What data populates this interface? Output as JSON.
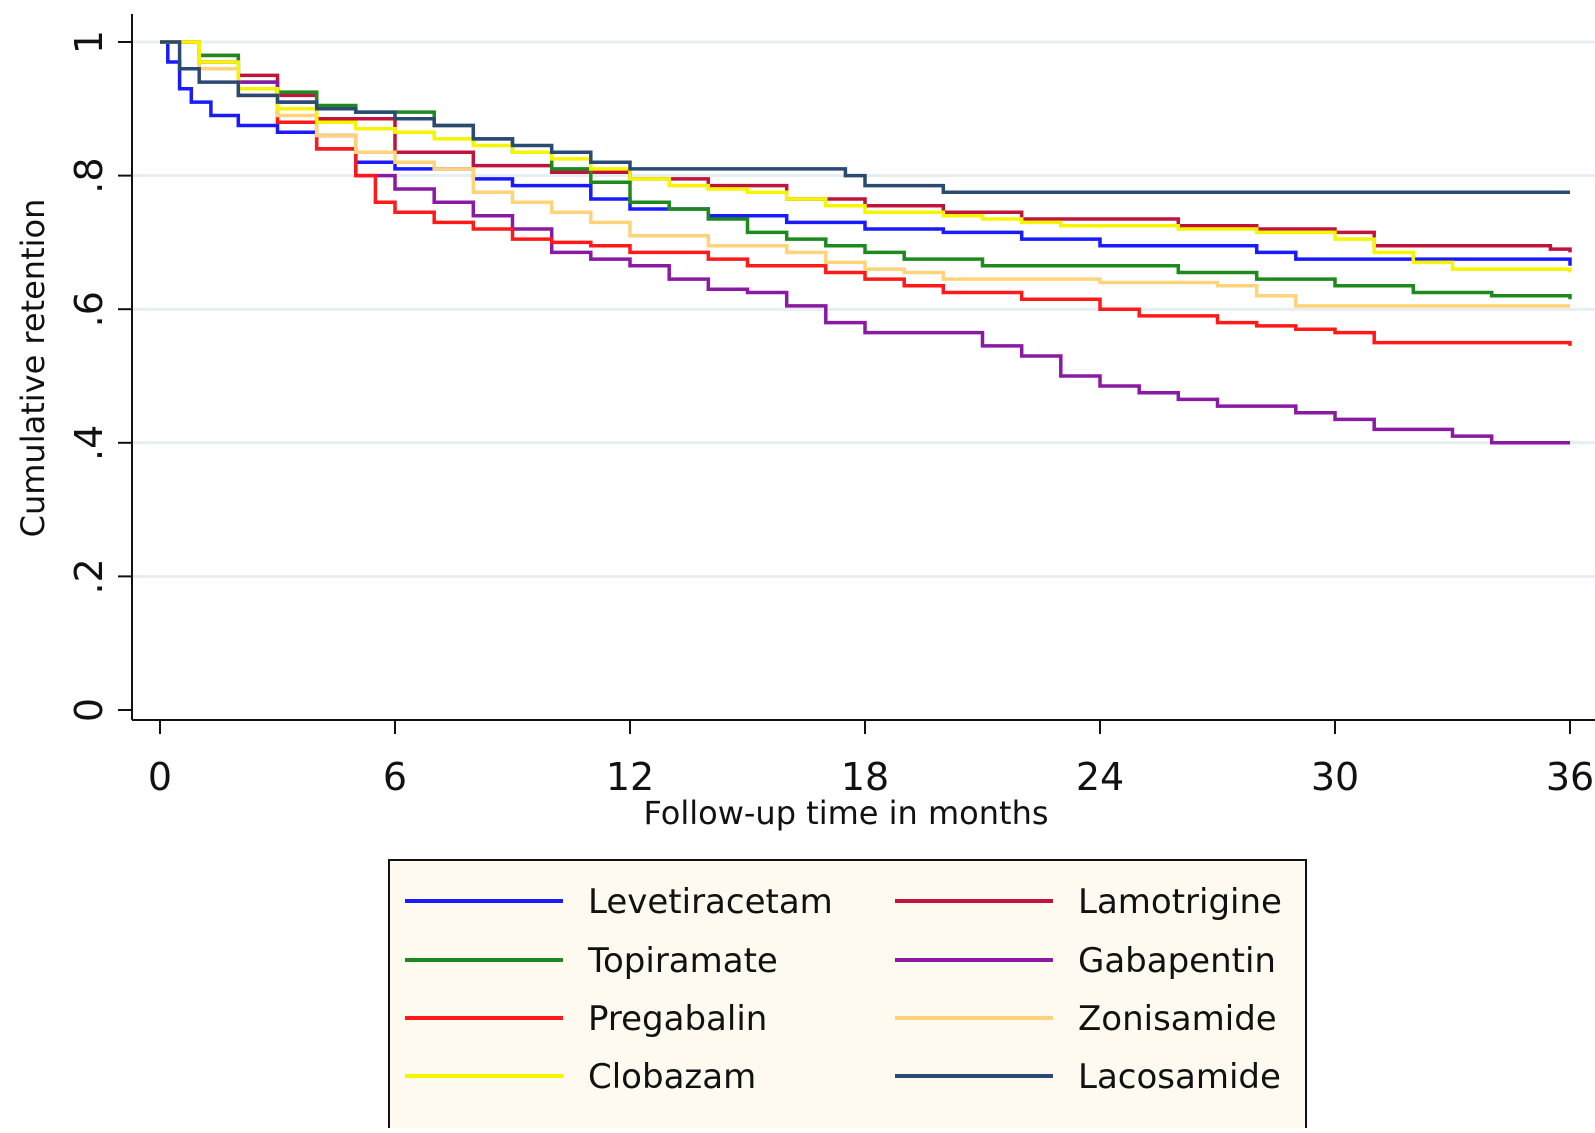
{
  "chart_data": {
    "type": "line",
    "step": true,
    "xlabel": "Follow-up time in months",
    "ylabel": "Cumulative retention",
    "xlim": [
      0,
      36
    ],
    "ylim": [
      0,
      1
    ],
    "xticks": [
      0,
      6,
      12,
      18,
      24,
      30,
      36
    ],
    "yticks": [
      0,
      0.2,
      0.4,
      0.6,
      0.8,
      1
    ],
    "xtick_labels": [
      "0",
      "6",
      "12",
      "18",
      "24",
      "30",
      "36"
    ],
    "ytick_labels": [
      "0",
      ".2",
      ".4",
      ".6",
      ".8",
      "1"
    ],
    "grid": "horizontal",
    "legend_position": "bottom",
    "series": [
      {
        "name": "Levetiracetam",
        "color": "#1a1aff",
        "points": [
          [
            0,
            1
          ],
          [
            0.2,
            0.97
          ],
          [
            0.5,
            0.93
          ],
          [
            0.8,
            0.91
          ],
          [
            1.3,
            0.89
          ],
          [
            2,
            0.875
          ],
          [
            3,
            0.865
          ],
          [
            4,
            0.84
          ],
          [
            5,
            0.82
          ],
          [
            6,
            0.81
          ],
          [
            8,
            0.795
          ],
          [
            9,
            0.785
          ],
          [
            11,
            0.765
          ],
          [
            12,
            0.75
          ],
          [
            14,
            0.74
          ],
          [
            16,
            0.73
          ],
          [
            18,
            0.72
          ],
          [
            20,
            0.715
          ],
          [
            22,
            0.705
          ],
          [
            24,
            0.695
          ],
          [
            28,
            0.685
          ],
          [
            29,
            0.675
          ],
          [
            36,
            0.665
          ]
        ]
      },
      {
        "name": "Lamotrigine",
        "color": "#c0143c",
        "points": [
          [
            0,
            1
          ],
          [
            1,
            0.98
          ],
          [
            2,
            0.95
          ],
          [
            3,
            0.92
          ],
          [
            4,
            0.885
          ],
          [
            6,
            0.835
          ],
          [
            8,
            0.815
          ],
          [
            10,
            0.805
          ],
          [
            12,
            0.795
          ],
          [
            14,
            0.785
          ],
          [
            16,
            0.765
          ],
          [
            18,
            0.755
          ],
          [
            20,
            0.745
          ],
          [
            22,
            0.735
          ],
          [
            26,
            0.725
          ],
          [
            28,
            0.72
          ],
          [
            30,
            0.715
          ],
          [
            31,
            0.695
          ],
          [
            35.5,
            0.69
          ],
          [
            36,
            0.685
          ]
        ]
      },
      {
        "name": "Topiramate",
        "color": "#1e8a1e",
        "points": [
          [
            0,
            1
          ],
          [
            1,
            0.98
          ],
          [
            2,
            0.94
          ],
          [
            3,
            0.925
          ],
          [
            4,
            0.905
          ],
          [
            5,
            0.895
          ],
          [
            6,
            0.895
          ],
          [
            7,
            0.875
          ],
          [
            8,
            0.855
          ],
          [
            9,
            0.835
          ],
          [
            10,
            0.81
          ],
          [
            11,
            0.79
          ],
          [
            12,
            0.76
          ],
          [
            13,
            0.75
          ],
          [
            14,
            0.735
          ],
          [
            15,
            0.715
          ],
          [
            16,
            0.705
          ],
          [
            17,
            0.695
          ],
          [
            18,
            0.685
          ],
          [
            19,
            0.675
          ],
          [
            21,
            0.665
          ],
          [
            26,
            0.655
          ],
          [
            28,
            0.645
          ],
          [
            30,
            0.635
          ],
          [
            32,
            0.625
          ],
          [
            34,
            0.62
          ],
          [
            36,
            0.615
          ]
        ]
      },
      {
        "name": "Gabapentin",
        "color": "#8a1aa3",
        "points": [
          [
            0,
            1
          ],
          [
            1,
            0.97
          ],
          [
            2,
            0.94
          ],
          [
            3,
            0.91
          ],
          [
            4,
            0.86
          ],
          [
            5,
            0.8
          ],
          [
            6,
            0.78
          ],
          [
            7,
            0.76
          ],
          [
            8,
            0.74
          ],
          [
            9,
            0.72
          ],
          [
            10,
            0.685
          ],
          [
            11,
            0.675
          ],
          [
            12,
            0.665
          ],
          [
            13,
            0.645
          ],
          [
            14,
            0.63
          ],
          [
            15,
            0.625
          ],
          [
            16,
            0.605
          ],
          [
            17,
            0.58
          ],
          [
            18,
            0.565
          ],
          [
            19,
            0.565
          ],
          [
            20,
            0.565
          ],
          [
            21,
            0.545
          ],
          [
            22,
            0.53
          ],
          [
            23,
            0.5
          ],
          [
            24,
            0.485
          ],
          [
            25,
            0.475
          ],
          [
            26,
            0.465
          ],
          [
            27,
            0.455
          ],
          [
            29,
            0.445
          ],
          [
            30,
            0.435
          ],
          [
            31,
            0.42
          ],
          [
            33,
            0.41
          ],
          [
            34,
            0.4
          ],
          [
            36,
            0.4
          ]
        ]
      },
      {
        "name": "Pregabalin",
        "color": "#ff1a1a",
        "points": [
          [
            0,
            1
          ],
          [
            1,
            0.96
          ],
          [
            2,
            0.92
          ],
          [
            3,
            0.88
          ],
          [
            4,
            0.84
          ],
          [
            5,
            0.8
          ],
          [
            5.5,
            0.76
          ],
          [
            6,
            0.745
          ],
          [
            7,
            0.73
          ],
          [
            8,
            0.72
          ],
          [
            9,
            0.705
          ],
          [
            10,
            0.7
          ],
          [
            11,
            0.695
          ],
          [
            12,
            0.685
          ],
          [
            14,
            0.675
          ],
          [
            15,
            0.665
          ],
          [
            17,
            0.655
          ],
          [
            18,
            0.645
          ],
          [
            19,
            0.635
          ],
          [
            20,
            0.625
          ],
          [
            22,
            0.615
          ],
          [
            24,
            0.6
          ],
          [
            25,
            0.59
          ],
          [
            27,
            0.58
          ],
          [
            28,
            0.575
          ],
          [
            29,
            0.57
          ],
          [
            30,
            0.565
          ],
          [
            31,
            0.55
          ],
          [
            36,
            0.545
          ]
        ]
      },
      {
        "name": "Zonisamide",
        "color": "#ffd37a",
        "points": [
          [
            0,
            1
          ],
          [
            1,
            0.96
          ],
          [
            2,
            0.92
          ],
          [
            3,
            0.89
          ],
          [
            4,
            0.86
          ],
          [
            5,
            0.835
          ],
          [
            6,
            0.82
          ],
          [
            7,
            0.81
          ],
          [
            8,
            0.775
          ],
          [
            9,
            0.76
          ],
          [
            10,
            0.745
          ],
          [
            11,
            0.73
          ],
          [
            12,
            0.71
          ],
          [
            14,
            0.695
          ],
          [
            16,
            0.685
          ],
          [
            17,
            0.67
          ],
          [
            18,
            0.66
          ],
          [
            19,
            0.655
          ],
          [
            20,
            0.645
          ],
          [
            24,
            0.64
          ],
          [
            27,
            0.635
          ],
          [
            28,
            0.62
          ],
          [
            29,
            0.605
          ],
          [
            36,
            0.605
          ]
        ]
      },
      {
        "name": "Clobazam",
        "color": "#f5f500",
        "points": [
          [
            0,
            1
          ],
          [
            1,
            0.97
          ],
          [
            2,
            0.93
          ],
          [
            3,
            0.9
          ],
          [
            4,
            0.88
          ],
          [
            5,
            0.87
          ],
          [
            6,
            0.865
          ],
          [
            7,
            0.855
          ],
          [
            8,
            0.845
          ],
          [
            9,
            0.835
          ],
          [
            10,
            0.825
          ],
          [
            11,
            0.81
          ],
          [
            12,
            0.795
          ],
          [
            13,
            0.785
          ],
          [
            14,
            0.78
          ],
          [
            15,
            0.775
          ],
          [
            16,
            0.765
          ],
          [
            17,
            0.755
          ],
          [
            18,
            0.745
          ],
          [
            20,
            0.74
          ],
          [
            21,
            0.735
          ],
          [
            22,
            0.73
          ],
          [
            23,
            0.725
          ],
          [
            26,
            0.72
          ],
          [
            28,
            0.715
          ],
          [
            30,
            0.705
          ],
          [
            31,
            0.685
          ],
          [
            32,
            0.67
          ],
          [
            33,
            0.66
          ],
          [
            36,
            0.655
          ]
        ]
      },
      {
        "name": "Lacosamide",
        "color": "#2a4a73",
        "points": [
          [
            0,
            1
          ],
          [
            0.5,
            0.96
          ],
          [
            1,
            0.94
          ],
          [
            2,
            0.92
          ],
          [
            3,
            0.91
          ],
          [
            4,
            0.9
          ],
          [
            5,
            0.895
          ],
          [
            6,
            0.885
          ],
          [
            7,
            0.875
          ],
          [
            8,
            0.855
          ],
          [
            9,
            0.845
          ],
          [
            10,
            0.835
          ],
          [
            11,
            0.82
          ],
          [
            12,
            0.81
          ],
          [
            14,
            0.81
          ],
          [
            17,
            0.81
          ],
          [
            17.5,
            0.8
          ],
          [
            18,
            0.785
          ],
          [
            19,
            0.785
          ],
          [
            20,
            0.775
          ],
          [
            36,
            0.775
          ]
        ]
      }
    ]
  }
}
